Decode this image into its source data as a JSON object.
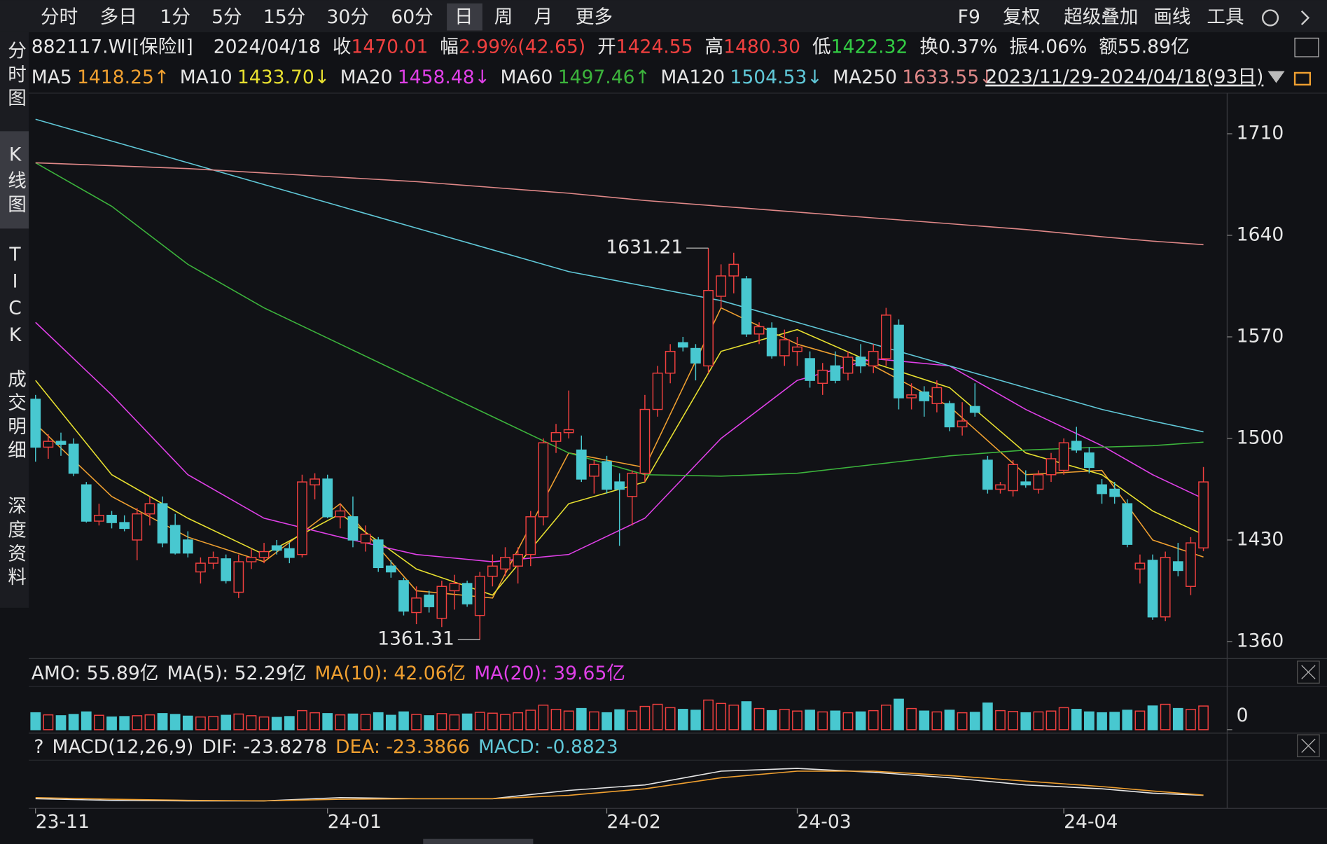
{
  "header": {
    "toolbar": [
      "分时",
      "多日",
      "1分",
      "5分",
      "15分",
      "30分",
      "60分",
      "日",
      "周",
      "月",
      "更多"
    ],
    "tools_right": [
      "F9",
      "复权",
      "超级叠加",
      "画线",
      "工具"
    ],
    "side_tabs": [
      "分时图",
      "K线图",
      "TICK",
      "成交明细",
      "深度资料"
    ],
    "code": "882117.WI[保险Ⅱ]",
    "date": "2024/04/18",
    "quote": [
      {
        "label": "收",
        "value": "1470.01",
        "color": "#f0403f"
      },
      {
        "label": "幅",
        "value": "2.99%(42.65)",
        "color": "#f0403f"
      },
      {
        "label": "开",
        "value": "1424.55",
        "color": "#f0403f"
      },
      {
        "label": "高",
        "value": "1480.30",
        "color": "#f0403f"
      },
      {
        "label": "低",
        "value": "1422.32",
        "color": "#33cc44"
      },
      {
        "label": "换",
        "value": "0.37%",
        "color": "#e6e6e6"
      },
      {
        "label": "振",
        "value": "4.06%",
        "color": "#e6e6e6"
      },
      {
        "label": "额",
        "value": "55.89亿",
        "color": "#e6e6e6"
      }
    ],
    "range": "2023/11/29-2024/04/18(93日)"
  },
  "chart_data": {
    "type": "candlestick",
    "up_color": "#f0403f",
    "down_color": "#48c8d0",
    "ylim": [
      1350,
      1738
    ],
    "yticks": [
      1360,
      1430,
      1500,
      1570,
      1640,
      1710
    ],
    "xticks": [
      {
        "value": 0,
        "label": "23-11"
      },
      {
        "value": 23,
        "label": "24-01"
      },
      {
        "value": 45,
        "label": "24-02"
      },
      {
        "value": 60,
        "label": "24-03"
      },
      {
        "value": 81,
        "label": "24-04"
      }
    ],
    "candles": [
      [
        1527,
        1530,
        1484,
        1494
      ],
      [
        1494,
        1503,
        1486,
        1498
      ],
      [
        1498,
        1504,
        1488,
        1496
      ],
      [
        1496,
        1500,
        1474,
        1476
      ],
      [
        1468,
        1470,
        1442,
        1443
      ],
      [
        1443,
        1455,
        1440,
        1447
      ],
      [
        1447,
        1450,
        1438,
        1442
      ],
      [
        1442,
        1447,
        1436,
        1438
      ],
      [
        1430,
        1452,
        1416,
        1448
      ],
      [
        1448,
        1460,
        1440,
        1455
      ],
      [
        1455,
        1460,
        1425,
        1428
      ],
      [
        1440,
        1448,
        1420,
        1421
      ],
      [
        1430,
        1436,
        1418,
        1421
      ],
      [
        1408,
        1418,
        1400,
        1414
      ],
      [
        1414,
        1422,
        1410,
        1418
      ],
      [
        1417,
        1420,
        1400,
        1402
      ],
      [
        1394,
        1420,
        1390,
        1415
      ],
      [
        1415,
        1424,
        1410,
        1418
      ],
      [
        1418,
        1428,
        1414,
        1422
      ],
      [
        1426,
        1430,
        1420,
        1423
      ],
      [
        1424,
        1428,
        1414,
        1418
      ],
      [
        1420,
        1475,
        1418,
        1470
      ],
      [
        1468,
        1476,
        1458,
        1472
      ],
      [
        1472,
        1475,
        1445,
        1446
      ],
      [
        1446,
        1455,
        1438,
        1450
      ],
      [
        1446,
        1460,
        1425,
        1430
      ],
      [
        1428,
        1440,
        1422,
        1434
      ],
      [
        1430,
        1432,
        1408,
        1411
      ],
      [
        1412,
        1416,
        1404,
        1408
      ],
      [
        1402,
        1404,
        1378,
        1381
      ],
      [
        1380,
        1398,
        1372,
        1390
      ],
      [
        1392,
        1395,
        1380,
        1384
      ],
      [
        1376,
        1402,
        1370,
        1398
      ],
      [
        1395,
        1406,
        1382,
        1400
      ],
      [
        1400,
        1402,
        1384,
        1386
      ],
      [
        1378,
        1408,
        1361.31,
        1405
      ],
      [
        1405,
        1420,
        1398,
        1412
      ],
      [
        1410,
        1425,
        1405,
        1418
      ],
      [
        1412,
        1425,
        1400,
        1420
      ],
      [
        1420,
        1450,
        1412,
        1446
      ],
      [
        1446,
        1500,
        1440,
        1497
      ],
      [
        1498,
        1510,
        1490,
        1504
      ],
      [
        1504,
        1533,
        1500,
        1506
      ],
      [
        1492,
        1502,
        1470,
        1472
      ],
      [
        1474,
        1485,
        1462,
        1482
      ],
      [
        1484,
        1488,
        1462,
        1465
      ],
      [
        1470,
        1476,
        1426,
        1465
      ],
      [
        1460,
        1478,
        1440,
        1476
      ],
      [
        1476,
        1530,
        1470,
        1520
      ],
      [
        1520,
        1550,
        1515,
        1545
      ],
      [
        1545,
        1565,
        1538,
        1560
      ],
      [
        1566,
        1570,
        1560,
        1563
      ],
      [
        1562,
        1565,
        1540,
        1552
      ],
      [
        1550,
        1631.21,
        1545,
        1602
      ],
      [
        1598,
        1620,
        1590,
        1612
      ],
      [
        1612,
        1628,
        1600,
        1620
      ],
      [
        1610,
        1612,
        1570,
        1572
      ],
      [
        1572,
        1580,
        1565,
        1577
      ],
      [
        1576,
        1580,
        1555,
        1557
      ],
      [
        1557,
        1575,
        1550,
        1568
      ],
      [
        1560,
        1570,
        1550,
        1563
      ],
      [
        1555,
        1560,
        1535,
        1540
      ],
      [
        1538,
        1552,
        1530,
        1547
      ],
      [
        1550,
        1560,
        1538,
        1540
      ],
      [
        1545,
        1560,
        1540,
        1556
      ],
      [
        1556,
        1565,
        1545,
        1550
      ],
      [
        1550,
        1565,
        1545,
        1560
      ],
      [
        1555,
        1590,
        1550,
        1585
      ],
      [
        1578,
        1582,
        1520,
        1528
      ],
      [
        1528,
        1538,
        1520,
        1530
      ],
      [
        1532,
        1536,
        1515,
        1526
      ],
      [
        1524,
        1540,
        1518,
        1535
      ],
      [
        1524,
        1526,
        1505,
        1508
      ],
      [
        1508,
        1525,
        1502,
        1512
      ],
      [
        1522,
        1538,
        1515,
        1518
      ],
      [
        1485,
        1488,
        1462,
        1465
      ],
      [
        1465,
        1470,
        1462,
        1468
      ],
      [
        1464,
        1485,
        1460,
        1482
      ],
      [
        1470,
        1478,
        1466,
        1468
      ],
      [
        1465,
        1478,
        1462,
        1475
      ],
      [
        1475,
        1490,
        1470,
        1486
      ],
      [
        1478,
        1500,
        1475,
        1497
      ],
      [
        1498,
        1508,
        1490,
        1492
      ],
      [
        1490,
        1494,
        1476,
        1480
      ],
      [
        1468,
        1472,
        1455,
        1462
      ],
      [
        1465,
        1470,
        1455,
        1460
      ],
      [
        1455,
        1458,
        1425,
        1427
      ],
      [
        1410,
        1420,
        1400,
        1414
      ],
      [
        1416,
        1420,
        1375,
        1377
      ],
      [
        1377,
        1422,
        1374,
        1418
      ],
      [
        1415,
        1428,
        1405,
        1409
      ],
      [
        1398,
        1432,
        1392,
        1428
      ],
      [
        1424.55,
        1480.3,
        1422.32,
        1470.01
      ]
    ],
    "annotations": [
      {
        "text": "1631.21",
        "candle": 53,
        "value": 1631.21,
        "color": "#f0403f"
      },
      {
        "text": "1361.31",
        "candle": 35,
        "value": 1361.31,
        "color": "#33cc44"
      }
    ],
    "series": [
      {
        "name": "MA5",
        "color": "#f0a030",
        "value_label": "1418.25↑",
        "x": [
          0,
          6,
          12,
          18,
          24,
          30,
          36,
          42,
          48,
          54,
          60,
          66,
          72,
          78,
          84,
          88,
          92
        ],
        "values": [
          1510,
          1460,
          1432,
          1415,
          1455,
          1395,
          1390,
          1490,
          1480,
          1590,
          1565,
          1550,
          1522,
          1475,
          1478,
          1430,
          1418.25
        ]
      },
      {
        "name": "MA10",
        "color": "#e8e030",
        "value_label": "1433.70↓",
        "x": [
          0,
          6,
          12,
          18,
          24,
          30,
          36,
          42,
          48,
          54,
          60,
          66,
          72,
          78,
          84,
          88,
          92
        ],
        "values": [
          1540,
          1475,
          1445,
          1420,
          1448,
          1410,
          1392,
          1455,
          1470,
          1560,
          1575,
          1552,
          1535,
          1490,
          1475,
          1450,
          1433.7
        ]
      },
      {
        "name": "MA20",
        "color": "#e040e8",
        "value_label": "1458.48↓",
        "x": [
          0,
          6,
          12,
          18,
          24,
          30,
          36,
          42,
          48,
          54,
          60,
          66,
          72,
          78,
          84,
          88,
          92
        ],
        "values": [
          1580,
          1530,
          1475,
          1445,
          1432,
          1420,
          1415,
          1420,
          1445,
          1500,
          1540,
          1555,
          1550,
          1520,
          1495,
          1475,
          1458.48
        ]
      },
      {
        "name": "MA60",
        "color": "#3cb43c",
        "value_label": "1497.46↑",
        "x": [
          0,
          6,
          12,
          18,
          24,
          30,
          36,
          42,
          48,
          54,
          60,
          66,
          72,
          78,
          84,
          88,
          92
        ],
        "values": [
          1690,
          1660,
          1620,
          1590,
          1565,
          1540,
          1515,
          1490,
          1475,
          1474,
          1476,
          1482,
          1488,
          1492,
          1494,
          1495,
          1497.46
        ]
      },
      {
        "name": "MA120",
        "color": "#60c8d8",
        "value_label": "1504.53↓",
        "x": [
          0,
          6,
          12,
          18,
          24,
          30,
          36,
          42,
          48,
          54,
          60,
          66,
          72,
          78,
          84,
          88,
          92
        ],
        "values": [
          1720,
          1705,
          1690,
          1675,
          1660,
          1645,
          1630,
          1615,
          1605,
          1595,
          1580,
          1565,
          1550,
          1535,
          1520,
          1512,
          1504.53
        ]
      },
      {
        "name": "MA250",
        "color": "#e08888",
        "value_label": "1633.55↓",
        "x": [
          0,
          6,
          12,
          18,
          24,
          30,
          36,
          42,
          48,
          54,
          60,
          66,
          72,
          78,
          84,
          88,
          92
        ],
        "values": [
          1690,
          1688,
          1686,
          1683,
          1680,
          1677,
          1673,
          1669,
          1664,
          1660,
          1656,
          1652,
          1648,
          1644,
          1639,
          1636,
          1633.55
        ]
      }
    ],
    "volume": {
      "ylim": [
        0,
        100
      ],
      "yticks": [
        0
      ],
      "legend": [
        {
          "text": "AMO: 55.89亿",
          "color": "#e6e6e6"
        },
        {
          "text": "MA(5): 52.29亿",
          "color": "#e6e6e6"
        },
        {
          "text": "MA(10): 42.06亿",
          "color": "#f0a030"
        },
        {
          "text": "MA(20): 39.65亿",
          "color": "#e040e8"
        }
      ],
      "values": [
        40,
        35,
        33,
        36,
        42,
        34,
        30,
        31,
        33,
        35,
        38,
        36,
        32,
        30,
        31,
        34,
        37,
        33,
        30,
        29,
        31,
        45,
        40,
        38,
        35,
        37,
        36,
        40,
        34,
        42,
        36,
        33,
        38,
        35,
        37,
        41,
        39,
        36,
        40,
        46,
        58,
        48,
        44,
        50,
        42,
        40,
        47,
        44,
        55,
        60,
        52,
        48,
        46,
        70,
        62,
        58,
        66,
        50,
        45,
        48,
        44,
        46,
        42,
        44,
        40,
        42,
        45,
        58,
        72,
        50,
        44,
        42,
        46,
        40,
        41,
        63,
        45,
        43,
        40,
        42,
        44,
        52,
        48,
        42,
        40,
        41,
        46,
        44,
        56,
        60,
        50,
        48,
        55.89
      ]
    },
    "macd": {
      "ylim": [
        -40,
        40
      ],
      "legend": [
        {
          "text": "?",
          "color": "#e6e6e6"
        },
        {
          "text": "MACD(12,26,9)",
          "color": "#e6e6e6"
        },
        {
          "text": "DIF: -23.8278",
          "color": "#e6e6e6"
        },
        {
          "text": "DEA: -23.3866",
          "color": "#f0a030"
        },
        {
          "text": "MACD: -0.8823",
          "color": "#60c8d8"
        }
      ],
      "series": [
        {
          "name": "DIF",
          "color": "#e6e6e6",
          "x": [
            0,
            6,
            12,
            18,
            24,
            30,
            36,
            42,
            48,
            54,
            60,
            66,
            72,
            78,
            84,
            88,
            92
          ],
          "values": [
            -30,
            -33,
            -34,
            -34,
            -28,
            -30,
            -30,
            -15,
            -5,
            20,
            25,
            18,
            8,
            -5,
            -12,
            -20,
            -23.8278
          ]
        },
        {
          "name": "DEA",
          "color": "#f0a030",
          "x": [
            0,
            6,
            12,
            18,
            24,
            30,
            36,
            42,
            48,
            54,
            60,
            66,
            72,
            78,
            84,
            88,
            92
          ],
          "values": [
            -28,
            -31,
            -33,
            -34,
            -31,
            -30,
            -30,
            -24,
            -12,
            8,
            20,
            20,
            12,
            2,
            -8,
            -16,
            -23.3866
          ]
        }
      ]
    }
  }
}
